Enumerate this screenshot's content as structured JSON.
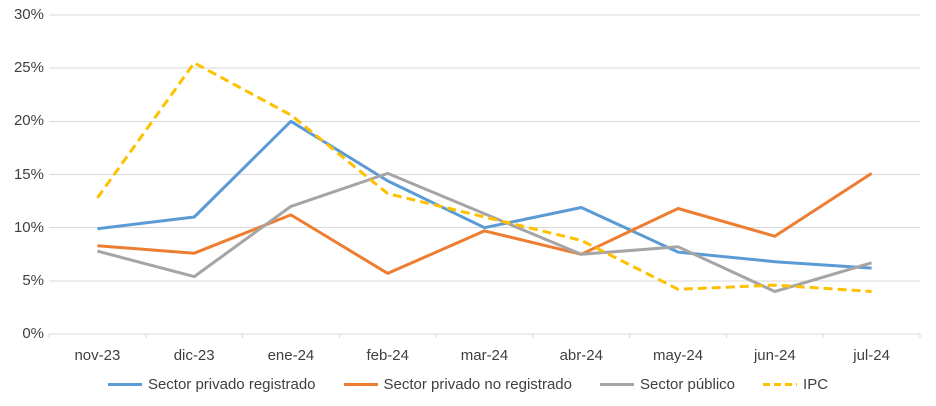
{
  "chart_data": {
    "type": "line",
    "title": "",
    "categories": [
      "nov-23",
      "dic-23",
      "ene-24",
      "feb-24",
      "mar-24",
      "abr-24",
      "may-24",
      "jun-24",
      "jul-24"
    ],
    "series": [
      {
        "name": "Sector privado registrado",
        "color": "#5B9BD5",
        "style": "solid",
        "values": [
          9.9,
          11.0,
          20.0,
          14.4,
          10.0,
          11.9,
          7.7,
          6.8,
          6.2
        ]
      },
      {
        "name": "Sector privado no registrado",
        "color": "#ED7D31",
        "style": "solid",
        "values": [
          8.3,
          7.6,
          11.2,
          5.7,
          9.7,
          7.5,
          11.8,
          9.2,
          15.1
        ]
      },
      {
        "name": "Sector público",
        "color": "#A5A5A5",
        "style": "solid",
        "values": [
          7.8,
          5.4,
          12.0,
          15.1,
          11.3,
          7.5,
          8.2,
          4.0,
          6.7
        ]
      },
      {
        "name": "IPC",
        "color": "#FFC000",
        "style": "dashed",
        "values": [
          12.8,
          25.5,
          20.6,
          13.2,
          11.0,
          8.8,
          4.2,
          4.6,
          4.0
        ]
      }
    ],
    "ylim": [
      0,
      30
    ],
    "ytick_step": 5,
    "ytick_labels": [
      "0%",
      "5%",
      "10%",
      "15%",
      "20%",
      "25%",
      "30%"
    ],
    "value_format": "percent",
    "grid": "horizontal",
    "legend_position": "bottom"
  },
  "colors": {
    "gridline": "#D9D9D9",
    "axis_text": "#3F3F3F",
    "background": "#FFFFFF"
  }
}
